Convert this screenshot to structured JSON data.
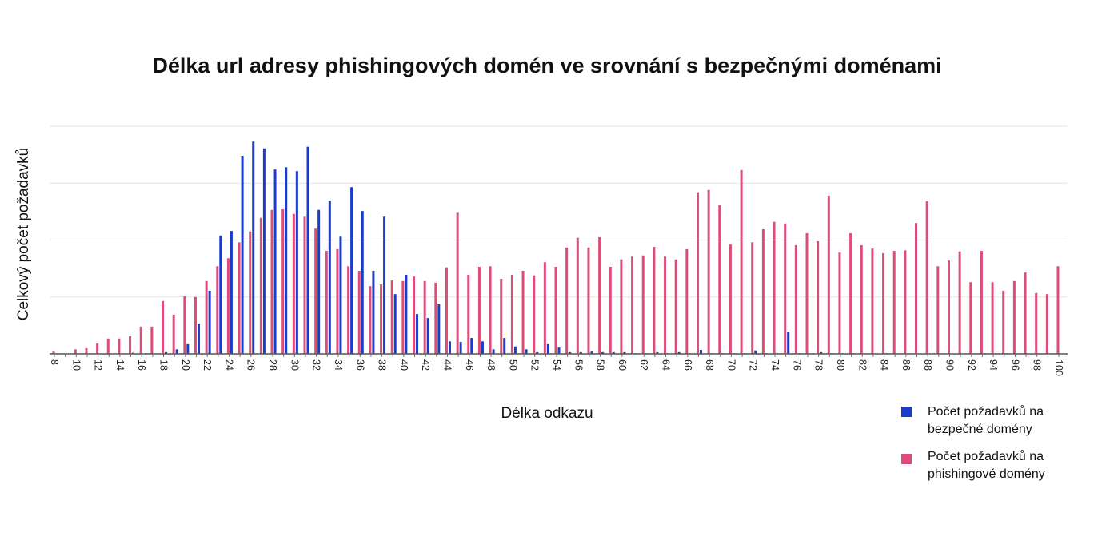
{
  "chart_data": {
    "type": "bar",
    "title": "Délka url adresy phishingových domén ve srovnání s bezpečnými doménami",
    "xlabel": "Délka odkazu",
    "ylabel": "Celkový počet požadavků",
    "grid": true,
    "legend_position": "bottom-right",
    "ylim": [
      0,
      400
    ],
    "x": [
      8,
      9,
      10,
      11,
      12,
      13,
      14,
      15,
      16,
      17,
      18,
      19,
      20,
      21,
      22,
      23,
      24,
      25,
      26,
      27,
      28,
      29,
      30,
      31,
      32,
      33,
      34,
      35,
      36,
      37,
      38,
      39,
      40,
      41,
      42,
      43,
      44,
      45,
      46,
      47,
      48,
      49,
      50,
      51,
      52,
      53,
      54,
      55,
      56,
      57,
      58,
      59,
      60,
      61,
      62,
      63,
      64,
      65,
      66,
      67,
      68,
      69,
      70,
      71,
      72,
      73,
      74,
      75,
      76,
      77,
      78,
      79,
      80,
      81,
      82,
      83,
      84,
      85,
      86,
      87,
      88,
      89,
      90,
      91,
      92,
      93,
      94,
      95,
      96,
      97,
      98,
      99,
      100
    ],
    "x_tick_labels": [
      "8",
      "10",
      "12",
      "14",
      "16",
      "18",
      "20",
      "22",
      "24",
      "26",
      "28",
      "30",
      "32",
      "34",
      "36",
      "38",
      "40",
      "42",
      "44",
      "46",
      "48",
      "50",
      "52",
      "54",
      "56",
      "58",
      "60",
      "62",
      "64",
      "66",
      "68",
      "70",
      "72",
      "74",
      "76",
      "78",
      "80",
      "82",
      "84",
      "86",
      "88",
      "90",
      "92",
      "94",
      "96",
      "98",
      "100"
    ],
    "series": [
      {
        "name": "Počet požadavků na bezpečné domény",
        "color": "#1a3ccc",
        "values": [
          0,
          0,
          0,
          0,
          0,
          0,
          0,
          2,
          0,
          0,
          3,
          8,
          17,
          53,
          111,
          208,
          216,
          348,
          373,
          361,
          324,
          328,
          321,
          364,
          253,
          269,
          206,
          293,
          251,
          146,
          241,
          105,
          139,
          70,
          63,
          87,
          22,
          21,
          28,
          22,
          8,
          28,
          13,
          8,
          3,
          17,
          11,
          3,
          3,
          4,
          3,
          3,
          3,
          1,
          1,
          3,
          1,
          3,
          1,
          7,
          1,
          1,
          1,
          1,
          6,
          1,
          1,
          39,
          1,
          0,
          3,
          1,
          1,
          1,
          0,
          0,
          1,
          0,
          0,
          0,
          0,
          0,
          0,
          0,
          0,
          1,
          0,
          1,
          0,
          0,
          0,
          0,
          0
        ]
      },
      {
        "name": "Počet požadavků na phishingové domény",
        "color": "#dc4d78",
        "values": [
          4,
          1,
          8,
          10,
          18,
          27,
          27,
          31,
          48,
          48,
          93,
          69,
          101,
          100,
          128,
          154,
          168,
          196,
          215,
          239,
          253,
          254,
          246,
          241,
          220,
          181,
          184,
          154,
          146,
          119,
          122,
          129,
          128,
          136,
          128,
          125,
          152,
          248,
          139,
          153,
          154,
          132,
          139,
          146,
          138,
          161,
          153,
          187,
          204,
          187,
          205,
          153,
          166,
          171,
          173,
          188,
          171,
          166,
          184,
          284,
          288,
          261,
          192,
          323,
          196,
          219,
          232,
          229,
          191,
          212,
          198,
          278,
          178,
          212,
          191,
          185,
          177,
          181,
          182,
          230,
          268,
          154,
          164,
          180,
          126,
          181,
          126,
          111,
          128,
          143,
          107,
          105,
          154
        ]
      }
    ]
  }
}
